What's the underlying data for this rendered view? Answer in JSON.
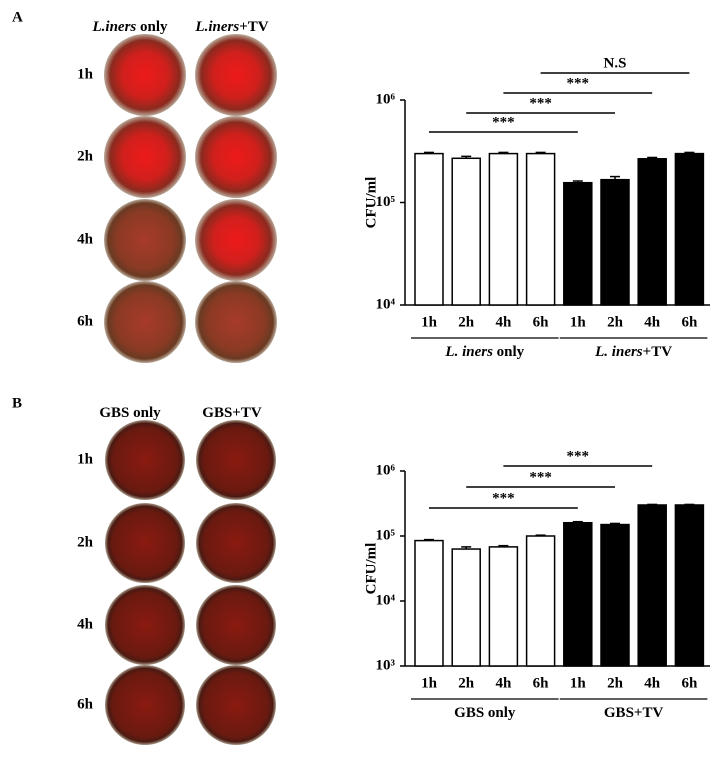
{
  "panels": [
    {
      "letter": "A",
      "columns": [
        [
          "L.iners",
          " only"
        ],
        [
          "L.iners",
          "+TV"
        ]
      ],
      "rows": [
        "1h",
        "2h",
        "4h",
        "6h"
      ]
    },
    {
      "letter": "B",
      "columns": [
        [
          "GBS only"
        ],
        [
          "GBS+TV"
        ]
      ],
      "rows": [
        "1h",
        "2h",
        "4h",
        "6h"
      ]
    }
  ],
  "chart_data": [
    {
      "type": "bar",
      "y_label": "CFU/ml",
      "log_scale": true,
      "ylim": [
        10000,
        1000000
      ],
      "yticks": [
        {
          "value": 10000,
          "label": "10⁴"
        },
        {
          "value": 100000,
          "label": "10⁵"
        },
        {
          "value": 1000000,
          "label": "10⁶"
        }
      ],
      "categories": [
        "1h",
        "2h",
        "4h",
        "6h"
      ],
      "series": [
        {
          "name": [
            "L. iners",
            " only"
          ],
          "color": "#ffffff",
          "values": [
            300000,
            270000,
            300000,
            300000
          ],
          "errors": [
            8000,
            12000,
            8000,
            8000
          ]
        },
        {
          "name": [
            "L. iners",
            "+TV"
          ],
          "color": "#000000",
          "values": [
            156000,
            167000,
            267000,
            300000
          ],
          "errors": [
            6000,
            12000,
            8000,
            8000
          ]
        }
      ],
      "annotations": [
        "***",
        "***",
        "***",
        "N.S"
      ]
    },
    {
      "type": "bar",
      "y_label": "CFU/ml",
      "log_scale": true,
      "ylim": [
        1000,
        1000000
      ],
      "yticks": [
        {
          "value": 1000,
          "label": "10³"
        },
        {
          "value": 10000,
          "label": "10⁴"
        },
        {
          "value": 100000,
          "label": "10⁵"
        },
        {
          "value": 1000000,
          "label": "10⁶"
        }
      ],
      "categories": [
        "1h",
        "2h",
        "4h",
        "6h"
      ],
      "series": [
        {
          "name": [
            "GBS only"
          ],
          "color": "#ffffff",
          "values": [
            85000,
            63000,
            68000,
            100000
          ],
          "errors": [
            3000,
            5000,
            3000,
            3000
          ]
        },
        {
          "name": [
            "GBS+TV"
          ],
          "color": "#000000",
          "values": [
            160000,
            150000,
            300000,
            300000
          ],
          "errors": [
            6000,
            6000,
            6000,
            6000
          ]
        }
      ],
      "annotations": [
        "***",
        "***",
        "***"
      ]
    }
  ]
}
